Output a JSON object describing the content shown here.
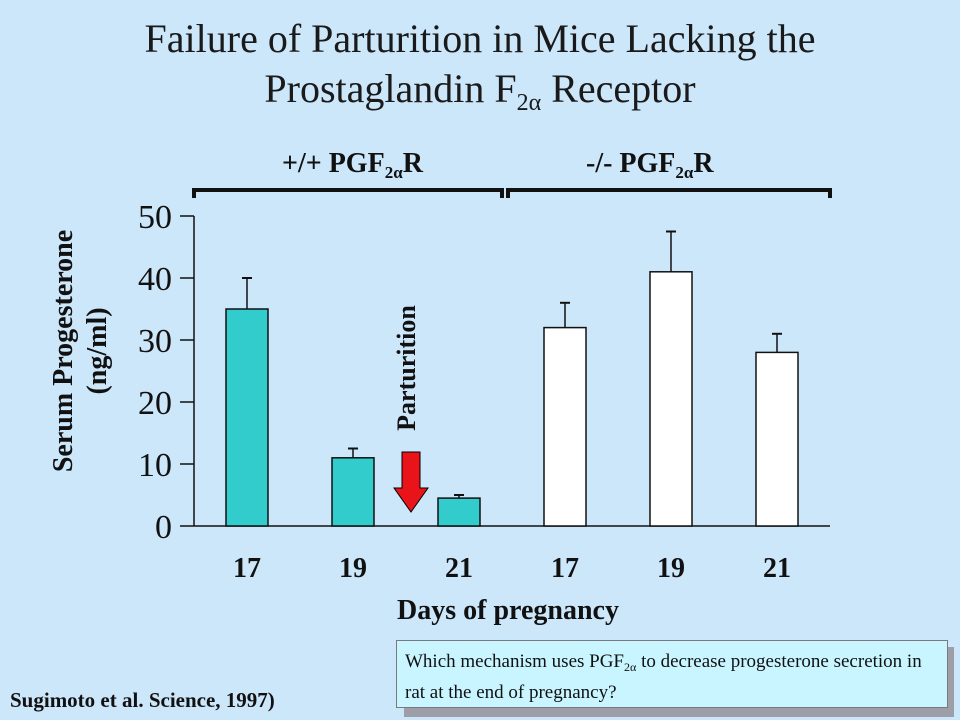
{
  "title": {
    "line1": "Failure of Parturition in Mice Lacking the",
    "line2_pre": "Prostaglandin F",
    "line2_sub": "2α",
    "line2_post": " Receptor"
  },
  "groups": [
    {
      "pre": "+/+ PGF",
      "sub": "2α",
      "post": "R"
    },
    {
      "pre": "-/- PGF",
      "sub": "2α",
      "post": "R"
    }
  ],
  "annotation": {
    "text": "Parturition",
    "arrow_color": "#e8141a"
  },
  "citation": "Sugimoto et al. Science, 1997)",
  "question": {
    "pre": "Which mechanism uses PGF",
    "sub": "2α",
    "post": " to decrease progesterone secretion in rat at the end of pregnancy?"
  },
  "chart_data": {
    "type": "bar",
    "categories": [
      "17",
      "19",
      "21",
      "17",
      "19",
      "21"
    ],
    "values": [
      35,
      11,
      4.5,
      32,
      41,
      28
    ],
    "errors": [
      5,
      1.5,
      0.5,
      4,
      6.5,
      3
    ],
    "bar_colors": [
      "#33cccc",
      "#33cccc",
      "#33cccc",
      "#ffffff",
      "#ffffff",
      "#ffffff"
    ],
    "xlabel": "Days of pregnancy",
    "ylabel_line1": "Serum Progesterone",
    "ylabel_line2": "(ng/ml)",
    "ylim": [
      0,
      50
    ],
    "yticks": [
      0,
      10,
      20,
      30,
      40,
      50
    ],
    "grid": false
  }
}
